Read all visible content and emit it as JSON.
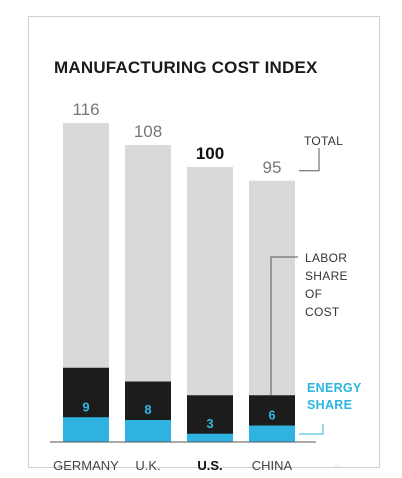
{
  "chart_data": {
    "type": "bar",
    "title": "MANUFACTURING COST INDEX",
    "categories": [
      "GERMANY",
      "U.K.",
      "U.S.",
      "CHINA"
    ],
    "highlight_category": "U.S.",
    "series": [
      {
        "name": "TOTAL",
        "values": [
          116,
          108,
          100,
          95
        ]
      },
      {
        "name": "LABOR SHARE OF COST",
        "values": [
          27,
          22,
          17,
          17
        ]
      },
      {
        "name": "ENERGY SHARE",
        "values": [
          9,
          8,
          3,
          6
        ]
      }
    ],
    "ylim": [
      0,
      120
    ],
    "colors": {
      "total": "#d9d9d9",
      "labor": "#1c1c1c",
      "energy": "#2fb4e2"
    },
    "annotations": {
      "total": "TOTAL",
      "labor": [
        "LABOR",
        "SHARE",
        "OF",
        "COST"
      ],
      "energy": [
        "ENERGY",
        "SHARE"
      ]
    }
  },
  "watermark": "···"
}
